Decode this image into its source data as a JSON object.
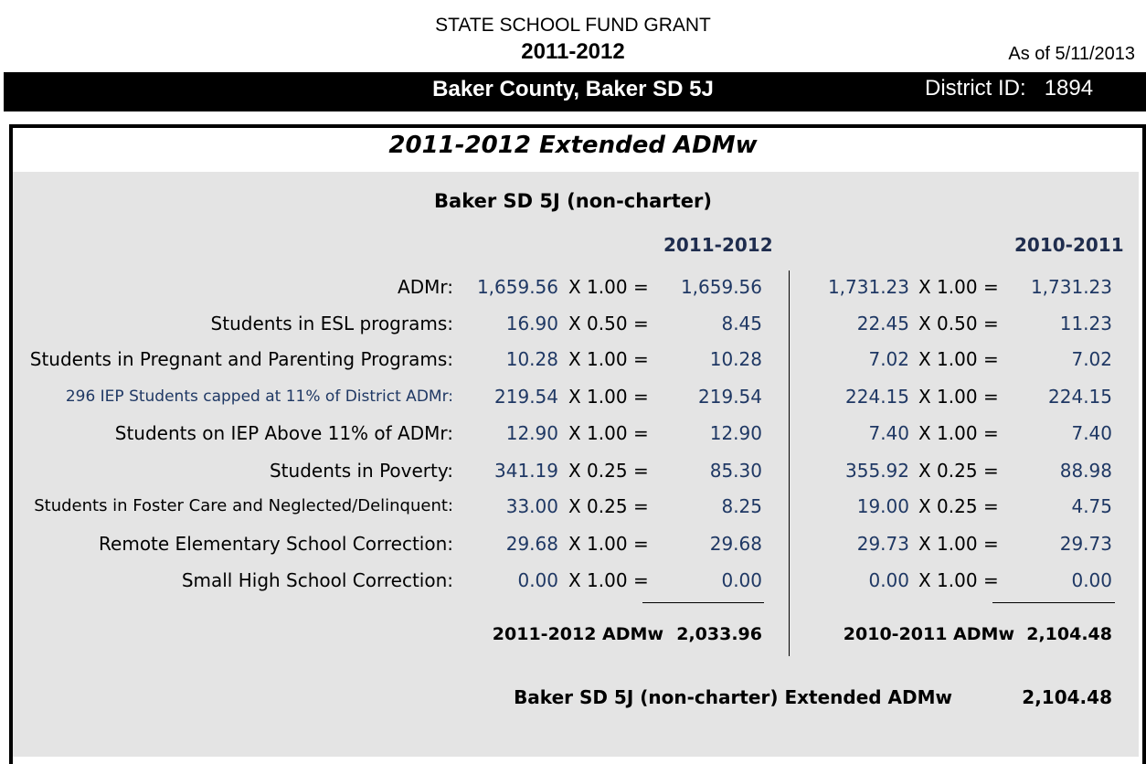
{
  "header": {
    "title": "STATE SCHOOL FUND GRANT",
    "year": "2011-2012",
    "as_of": "As of 5/11/2013"
  },
  "banner": {
    "district_name": "Baker County, Baker SD 5J",
    "district_id_label": "District ID:",
    "district_id": "1894"
  },
  "section": {
    "title": "2011-2012 Extended ADMw",
    "subtitle": "Baker SD 5J (non-charter)",
    "col_current": "2011-2012",
    "col_prior": "2010-2011"
  },
  "rows": [
    {
      "label": "ADMr:",
      "cur_count": "1,659.56",
      "cur_mult": "X 1.00 =",
      "cur_value": "1,659.56",
      "pri_count": "1,731.23",
      "pri_mult": "X 1.00 =",
      "pri_value": "1,731.23"
    },
    {
      "label": "Students in ESL programs:",
      "cur_count": "16.90",
      "cur_mult": "X 0.50 =",
      "cur_value": "8.45",
      "pri_count": "22.45",
      "pri_mult": "X 0.50 =",
      "pri_value": "11.23"
    },
    {
      "label": "Students in Pregnant and Parenting Programs:",
      "cur_count": "10.28",
      "cur_mult": "X 1.00 =",
      "cur_value": "10.28",
      "pri_count": "7.02",
      "pri_mult": "X 1.00 =",
      "pri_value": "7.02"
    },
    {
      "label": "296 IEP Students capped at 11% of District ADMr:",
      "cur_count": "219.54",
      "cur_mult": "X 1.00 =",
      "cur_value": "219.54",
      "pri_count": "224.15",
      "pri_mult": "X 1.00 =",
      "pri_value": "224.15"
    },
    {
      "label": "Students on IEP Above 11% of ADMr:",
      "cur_count": "12.90",
      "cur_mult": "X 1.00 =",
      "cur_value": "12.90",
      "pri_count": "7.40",
      "pri_mult": "X 1.00 =",
      "pri_value": "7.40"
    },
    {
      "label": "Students in Poverty:",
      "cur_count": "341.19",
      "cur_mult": "X 0.25 =",
      "cur_value": "85.30",
      "pri_count": "355.92",
      "pri_mult": "X 0.25 =",
      "pri_value": "88.98"
    },
    {
      "label": "Students in Foster Care and Neglected/Delinquent:",
      "cur_count": "33.00",
      "cur_mult": "X 0.25 =",
      "cur_value": "8.25",
      "pri_count": "19.00",
      "pri_mult": "X 0.25 =",
      "pri_value": "4.75"
    },
    {
      "label": "Remote Elementary School Correction:",
      "cur_count": "29.68",
      "cur_mult": "X 1.00 =",
      "cur_value": "29.68",
      "pri_count": "29.73",
      "pri_mult": "X 1.00 =",
      "pri_value": "29.73"
    },
    {
      "label": "Small High School Correction:",
      "cur_count": "0.00",
      "cur_mult": "X 1.00 =",
      "cur_value": "0.00",
      "pri_count": "0.00",
      "pri_mult": "X 1.00 =",
      "pri_value": "0.00"
    }
  ],
  "totals": {
    "cur_label": "2011-2012 ADMw",
    "cur_value": "2,033.96",
    "pri_label": "2010-2011 ADMw",
    "pri_value": "2,104.48"
  },
  "extended": {
    "label": "Baker SD 5J (non-charter) Extended ADMw",
    "value": "2,104.48"
  }
}
